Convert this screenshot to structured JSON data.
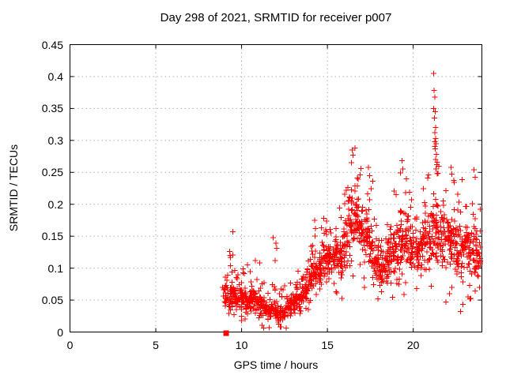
{
  "figure": {
    "background": "#ffffff",
    "text_color": "#000000"
  },
  "chart_data": {
    "type": "scatter",
    "title": "Day 298 of 2021, SRMTID for receiver p007",
    "xlabel": "GPS time / hours",
    "ylabel": "SRMTID / TECUs",
    "xlim": [
      0,
      24
    ],
    "ylim": [
      0,
      0.45
    ],
    "x_tick_values": [
      0,
      5,
      10,
      15,
      20
    ],
    "x_tick_labels": [
      "0",
      "5",
      "10",
      "15",
      "20"
    ],
    "y_tick_values": [
      0,
      0.05,
      0.1,
      0.15,
      0.2,
      0.25,
      0.3,
      0.35,
      0.4,
      0.45
    ],
    "y_tick_labels": [
      "0",
      "0.05",
      "0.1",
      "0.15",
      "0.2",
      "0.25",
      "0.3",
      "0.35",
      "0.4",
      "0.45"
    ],
    "grid": true,
    "legend": "none",
    "colors": {
      "marker": "#ff0000",
      "grid": "#b0b0b0",
      "border": "#000000",
      "background": "#ffffff"
    },
    "marker": {
      "shape": "plus",
      "size": 7,
      "color": "#ff0000"
    },
    "start_marker": {
      "x": 9.1,
      "y": 0,
      "shape": "filled-square",
      "size": 7,
      "color": "#ff0000"
    },
    "data_time_range_hours": [
      8.9,
      23.95
    ],
    "notable_points": [
      [
        9.5,
        0.157
      ],
      [
        9.3,
        0.126
      ],
      [
        9.32,
        0.12
      ],
      [
        9.35,
        0.104
      ],
      [
        10.35,
        0.105
      ],
      [
        10.8,
        0.112
      ],
      [
        11.05,
        0.108
      ],
      [
        11.85,
        0.148
      ],
      [
        12.0,
        0.139
      ],
      [
        12.05,
        0.131
      ],
      [
        11.95,
        0.112
      ],
      [
        13.3,
        0.095
      ],
      [
        14.25,
        0.175
      ],
      [
        14.3,
        0.162
      ],
      [
        14.28,
        0.15
      ],
      [
        14.9,
        0.16
      ],
      [
        16.45,
        0.285
      ],
      [
        16.5,
        0.277
      ],
      [
        16.4,
        0.265
      ],
      [
        17.4,
        0.258
      ],
      [
        17.45,
        0.245
      ],
      [
        19.35,
        0.268
      ],
      [
        19.4,
        0.255
      ],
      [
        21.2,
        0.405
      ],
      [
        21.22,
        0.378
      ],
      [
        21.25,
        0.368
      ],
      [
        21.2,
        0.35
      ],
      [
        21.28,
        0.345
      ],
      [
        21.24,
        0.335
      ],
      [
        21.3,
        0.32
      ],
      [
        21.26,
        0.312
      ],
      [
        21.3,
        0.303
      ],
      [
        21.33,
        0.295
      ],
      [
        21.28,
        0.287
      ],
      [
        21.35,
        0.278
      ],
      [
        21.3,
        0.27
      ],
      [
        21.38,
        0.262
      ],
      [
        21.33,
        0.255
      ],
      [
        21.4,
        0.248
      ],
      [
        22.2,
        0.258
      ],
      [
        22.25,
        0.247
      ],
      [
        23.55,
        0.254
      ],
      [
        23.6,
        0.242
      ],
      [
        21.9,
        0.047
      ],
      [
        22.75,
        0.032
      ],
      [
        22.9,
        0.043
      ],
      [
        23.3,
        0.052
      ]
    ],
    "density_bins_format": "[t_start_hours, t_end_hours, n_points, mean_TECUs, spread_TECUs]",
    "density_bins": [
      [
        8.9,
        9.3,
        28,
        0.058,
        0.03
      ],
      [
        9.3,
        9.6,
        34,
        0.06,
        0.028
      ],
      [
        9.6,
        9.9,
        34,
        0.052,
        0.022
      ],
      [
        9.9,
        10.2,
        34,
        0.055,
        0.025
      ],
      [
        10.2,
        10.5,
        30,
        0.047,
        0.02
      ],
      [
        10.5,
        10.8,
        30,
        0.05,
        0.022
      ],
      [
        10.8,
        11.1,
        30,
        0.045,
        0.02
      ],
      [
        11.1,
        11.4,
        30,
        0.04,
        0.02
      ],
      [
        11.4,
        11.7,
        30,
        0.034,
        0.018
      ],
      [
        11.7,
        12.0,
        30,
        0.035,
        0.018
      ],
      [
        12.0,
        12.3,
        30,
        0.031,
        0.016
      ],
      [
        12.3,
        12.6,
        30,
        0.035,
        0.018
      ],
      [
        12.6,
        12.9,
        30,
        0.04,
        0.02
      ],
      [
        12.9,
        13.2,
        30,
        0.045,
        0.02
      ],
      [
        13.2,
        13.5,
        30,
        0.051,
        0.022
      ],
      [
        13.5,
        13.8,
        32,
        0.065,
        0.026
      ],
      [
        13.8,
        14.1,
        32,
        0.08,
        0.028
      ],
      [
        14.1,
        14.4,
        32,
        0.09,
        0.03
      ],
      [
        14.4,
        14.7,
        32,
        0.1,
        0.03
      ],
      [
        14.7,
        15.0,
        32,
        0.11,
        0.032
      ],
      [
        15.0,
        15.3,
        32,
        0.115,
        0.035
      ],
      [
        15.3,
        15.6,
        32,
        0.12,
        0.035
      ],
      [
        15.6,
        15.9,
        32,
        0.112,
        0.04
      ],
      [
        15.9,
        16.2,
        34,
        0.14,
        0.052
      ],
      [
        16.2,
        16.5,
        36,
        0.178,
        0.058
      ],
      [
        16.5,
        16.8,
        36,
        0.188,
        0.052
      ],
      [
        16.8,
        17.1,
        34,
        0.168,
        0.05
      ],
      [
        17.1,
        17.4,
        32,
        0.15,
        0.05
      ],
      [
        17.4,
        17.7,
        32,
        0.132,
        0.05
      ],
      [
        17.7,
        18.0,
        32,
        0.112,
        0.042
      ],
      [
        18.0,
        18.3,
        32,
        0.1,
        0.04
      ],
      [
        18.3,
        18.6,
        32,
        0.11,
        0.045
      ],
      [
        18.6,
        18.9,
        32,
        0.12,
        0.048
      ],
      [
        18.9,
        19.2,
        32,
        0.13,
        0.05
      ],
      [
        19.2,
        19.5,
        32,
        0.14,
        0.052
      ],
      [
        19.5,
        19.8,
        32,
        0.148,
        0.05
      ],
      [
        19.8,
        20.1,
        32,
        0.13,
        0.046
      ],
      [
        20.1,
        20.4,
        32,
        0.12,
        0.046
      ],
      [
        20.4,
        20.7,
        32,
        0.13,
        0.05
      ],
      [
        20.7,
        21.0,
        32,
        0.14,
        0.052
      ],
      [
        21.0,
        21.3,
        34,
        0.17,
        0.06
      ],
      [
        21.3,
        21.6,
        34,
        0.16,
        0.055
      ],
      [
        21.6,
        21.9,
        32,
        0.14,
        0.05
      ],
      [
        21.9,
        22.2,
        32,
        0.148,
        0.052
      ],
      [
        22.2,
        22.5,
        32,
        0.14,
        0.05
      ],
      [
        22.5,
        22.8,
        32,
        0.12,
        0.046
      ],
      [
        22.8,
        23.1,
        32,
        0.13,
        0.05
      ],
      [
        23.1,
        23.4,
        32,
        0.12,
        0.046
      ],
      [
        23.4,
        23.7,
        30,
        0.128,
        0.05
      ],
      [
        23.7,
        23.95,
        24,
        0.118,
        0.04
      ]
    ],
    "seed": 1298
  }
}
